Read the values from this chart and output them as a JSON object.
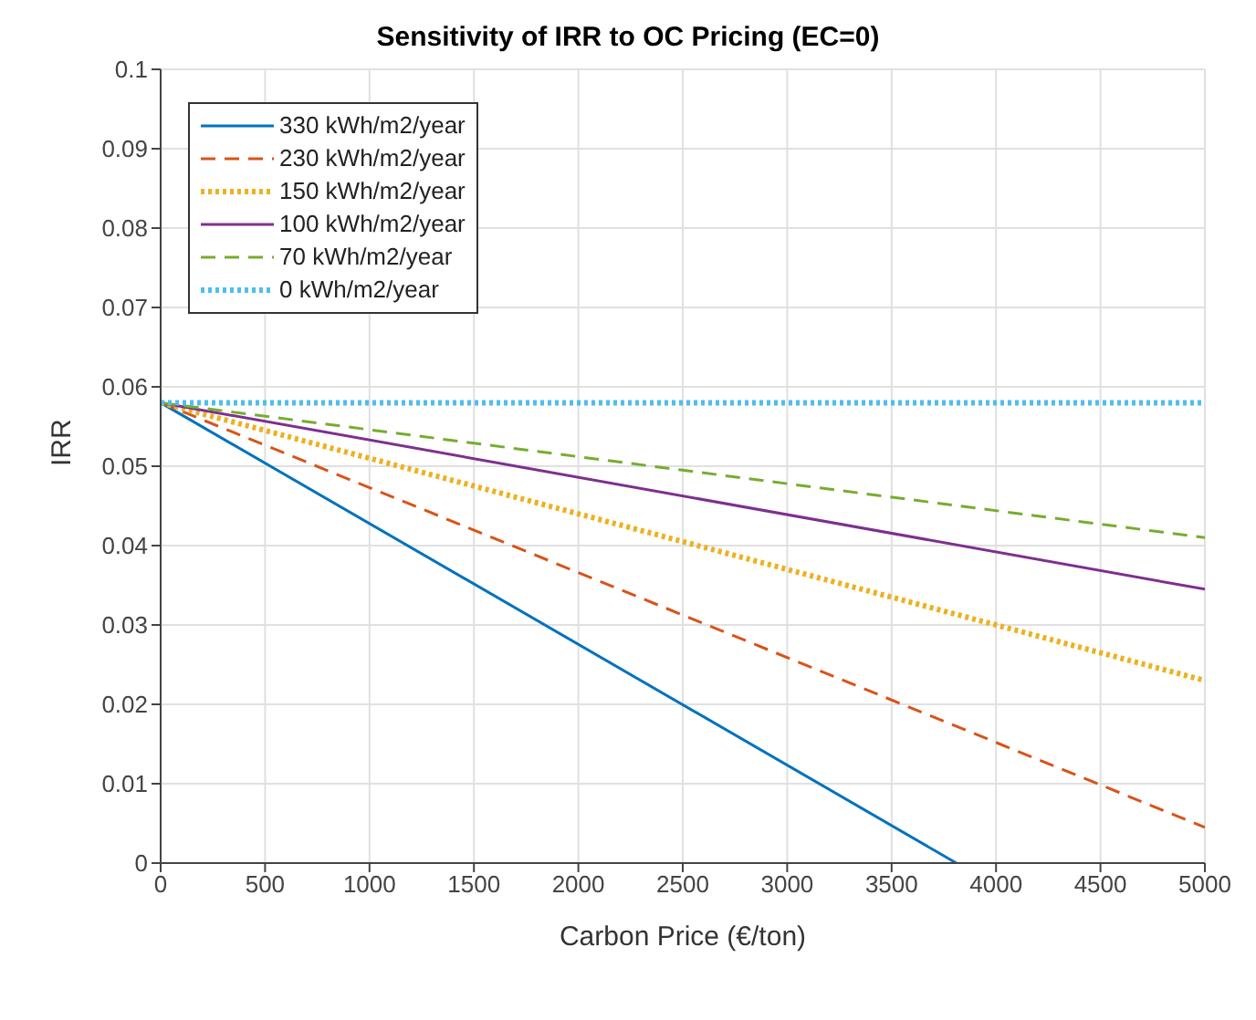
{
  "chart_data": {
    "type": "line",
    "title": "Sensitivity of IRR to OC Pricing (EC=0)",
    "xlabel": "Carbon Price (€/ton)",
    "ylabel": "IRR",
    "xlim": [
      0,
      5000
    ],
    "xticks": [
      0,
      500,
      1000,
      1500,
      2000,
      2500,
      3000,
      3500,
      4000,
      4500,
      5000
    ],
    "ylim": [
      0,
      0.1
    ],
    "yticks": [
      0,
      0.01,
      0.02,
      0.03,
      0.04,
      0.05,
      0.06,
      0.07,
      0.08,
      0.09,
      0.1
    ],
    "grid": true,
    "legend": "top left",
    "marker": "none",
    "series": [
      {
        "name": "330 kWh/m2/year",
        "color": "#0072bd",
        "line_style": "solid",
        "x": [
          0,
          3810
        ],
        "values": [
          0.058,
          0
        ]
      },
      {
        "name": "230 kWh/m2/year",
        "color": "#d95319",
        "line_style": "dashed",
        "x": [
          0,
          5000
        ],
        "values": [
          0.058,
          0.0045
        ]
      },
      {
        "name": "150 kWh/m2/year",
        "color": "#edb120",
        "line_style": "dotted",
        "x": [
          0,
          5000
        ],
        "values": [
          0.058,
          0.023
        ]
      },
      {
        "name": "100 kWh/m2/year",
        "color": "#7e2f8e",
        "line_style": "solid",
        "x": [
          0,
          5000
        ],
        "values": [
          0.058,
          0.0345
        ]
      },
      {
        "name": "70 kWh/m2/year",
        "color": "#77ac30",
        "line_style": "dashed",
        "x": [
          0,
          5000
        ],
        "values": [
          0.058,
          0.041
        ]
      },
      {
        "name": "0 kWh/m2/year",
        "color": "#4dbeee",
        "line_style": "dotted",
        "x": [
          0,
          5000
        ],
        "values": [
          0.058,
          0.058
        ]
      }
    ]
  }
}
